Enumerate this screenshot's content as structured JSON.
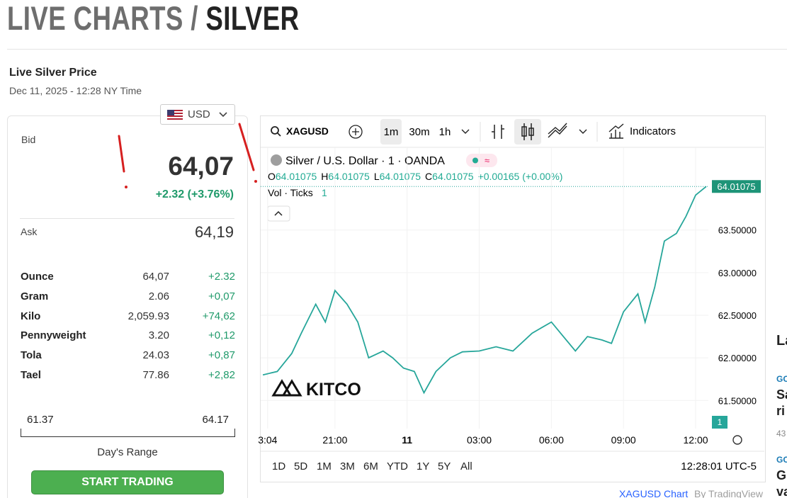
{
  "header": {
    "title_prefix": "LIVE CHARTS /",
    "title_main": "SILVER"
  },
  "price_panel": {
    "heading": "Live Silver Price",
    "timestamp": "Dec 11, 2025 - 12:28 NY Time",
    "currency": "USD",
    "bid_label": "Bid",
    "bid": "64,07",
    "change": "+2.32 (+3.76%)",
    "ask_label": "Ask",
    "ask": "64,19",
    "rows": [
      [
        "Ounce",
        "64,07",
        "+2.32"
      ],
      [
        "Gram",
        "2.06",
        "+0,07"
      ],
      [
        "Kilo",
        "2,059.93",
        "+74,62"
      ],
      [
        "Pennyweight",
        "3.20",
        "+0,12"
      ],
      [
        "Tola",
        "24.03",
        "+0,87"
      ],
      [
        "Tael",
        "77.86",
        "+2,82"
      ]
    ],
    "range_low": "61.37",
    "range_high": "64.17",
    "range_label": "Day's Range",
    "button": "START TRADING"
  },
  "widget": {
    "symbol": "XAGUSD",
    "intervals": [
      "1m",
      "30m",
      "1h"
    ],
    "indicators": "Indicators",
    "legend_title": "Silver / U.S. Dollar · 1 · OANDA",
    "ohlc": [
      [
        "O",
        "64.01075"
      ],
      [
        "H",
        "64.01075"
      ],
      [
        "L",
        "64.01075"
      ],
      [
        "C",
        "64.01075"
      ]
    ],
    "ohlc_change": "+0.00165 (+0.00%)",
    "vol_label": "Vol · Ticks",
    "vol_value": "1",
    "ranges": [
      "1D",
      "5D",
      "1M",
      "3M",
      "6M",
      "YTD",
      "1Y",
      "5Y",
      "All"
    ],
    "clock": "12:28:01 UTC-5",
    "credit_link": "XAGUSD Chart",
    "credit_by": "By TradingView",
    "logo": "KITCO"
  },
  "sidebar": {
    "texts": [
      "La",
      "GO",
      "Sa",
      "ri",
      "43",
      "GO",
      "G",
      "va"
    ]
  },
  "chart_data": {
    "type": "line",
    "color": "#26a69a",
    "grid": true,
    "x": [
      -6.0,
      -5.4,
      -4.8,
      -4.4,
      -3.8,
      -3.4,
      -3.0,
      -2.5,
      -2.05,
      -1.6,
      -1.0,
      -0.6,
      -0.15,
      0.3,
      0.7,
      1.2,
      1.8,
      2.3,
      3.0,
      3.7,
      4.4,
      5.2,
      6.0,
      6.5,
      7.0,
      7.5,
      8.1,
      8.5,
      9.0,
      9.6,
      9.9,
      10.3,
      10.7,
      11.2,
      11.6,
      12.0,
      12.44
    ],
    "values": [
      61.8,
      61.84,
      62.05,
      62.29,
      62.63,
      62.42,
      62.79,
      62.63,
      62.42,
      62.0,
      62.08,
      62.0,
      61.88,
      61.84,
      61.59,
      61.84,
      62.0,
      62.07,
      62.08,
      62.13,
      62.08,
      62.29,
      62.42,
      62.25,
      62.08,
      62.25,
      62.21,
      62.17,
      62.54,
      62.75,
      62.42,
      62.83,
      63.37,
      63.46,
      63.66,
      63.91,
      64.01
    ],
    "xlim": [
      -6.09,
      12.53
    ],
    "xticks": [
      {
        "value": -5.8,
        "label": "3:04"
      },
      {
        "value": -3,
        "label": "21:00"
      },
      {
        "value": 0,
        "label": "11"
      },
      {
        "value": 3,
        "label": "03:00"
      },
      {
        "value": 6,
        "label": "06:00"
      },
      {
        "value": 9,
        "label": "09:00"
      },
      {
        "value": 12,
        "label": "12:00"
      }
    ],
    "ylim": [
      61.17,
      64.47
    ],
    "yticks": [
      {
        "value": 61.5,
        "label": "61.50000"
      },
      {
        "value": 62,
        "label": "62.00000"
      },
      {
        "value": 62.5,
        "label": "62.50000"
      },
      {
        "value": 63,
        "label": "63.00000"
      },
      {
        "value": 63.5,
        "label": "63.50000"
      }
    ],
    "last_price": 64.01075,
    "last_price_label": "64.01075",
    "volume_tag": "1"
  }
}
